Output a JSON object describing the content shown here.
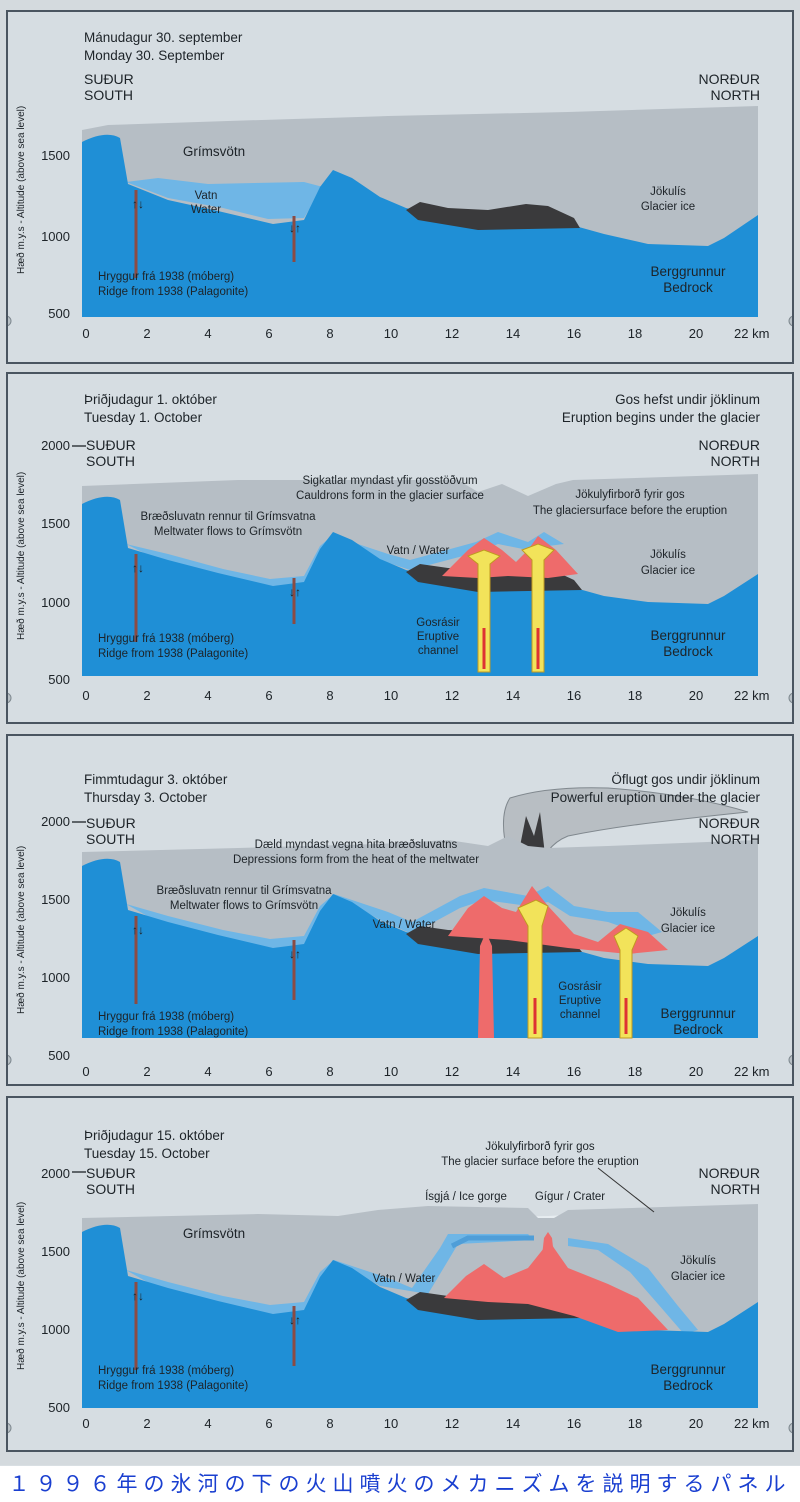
{
  "common": {
    "y_axis_title": "Hæð m.y.s - Altitude (above sea level)",
    "south_is": "SUÐUR",
    "south_en": "SOUTH",
    "north_is": "NORÐUR",
    "north_en": "NORTH",
    "x_ticks": [
      "0",
      "2",
      "4",
      "6",
      "8",
      "10",
      "12",
      "14",
      "16",
      "18",
      "20",
      "22 km"
    ],
    "ridge_is": "Hryggur frá 1938 (móberg)",
    "ridge_en": "Ridge from 1938 (Palagonite)",
    "bedrock_is": "Berggrunnur",
    "bedrock_en": "Bedrock",
    "glacier_is": "Jökulís",
    "glacier_en": "Glacier ice",
    "colors": {
      "bedrock": "#1f8fd6",
      "water": "#6fb6e6",
      "ice": "#b6bec5",
      "hyaloclastite": "#3a3a3c",
      "magma": "#ee6b6b",
      "channel": "#f2e35a"
    }
  },
  "panels": [
    {
      "date_is": "Mánudagur 30. september",
      "date_en": "Monday 30. September",
      "y_ticks": [
        "1500",
        "1000",
        "500"
      ],
      "grimsvotn": "Grímsvötn",
      "water_is": "Vatn",
      "water_en": "Water"
    },
    {
      "date_is": "Þriðjudagur 1. október",
      "date_en": "Tuesday 1. October",
      "y_ticks": [
        "2000",
        "1500",
        "1000",
        "500"
      ],
      "heading_is": "Gos hefst undir jöklinum",
      "heading_en": "Eruption begins under the glacier",
      "cauldron_is": "Sigkatlar myndast yfir gosstöðvum",
      "cauldron_en": "Cauldrons form in the glacier surface",
      "surface_is": "Jökulyfirborð fyrir gos",
      "surface_en": "The glaciersurface before the eruption",
      "melt_is": "Bræðsluvatn rennur til Grímsvatna",
      "melt_en": "Meltwater flows to Grímsvötn",
      "water": "Vatn / Water",
      "channel_is": "Gosrásir",
      "channel_en1": "Eruptive",
      "channel_en2": "channel"
    },
    {
      "date_is": "Fimmtudagur 3. október",
      "date_en": "Thursday 3. October",
      "y_ticks": [
        "2000",
        "1500",
        "1000",
        "500"
      ],
      "heading_is": "Öflugt gos undir jöklinum",
      "heading_en": "Powerful eruption under the glacier",
      "depr_is": "Dæld myndast vegna hita bræðsluvatns",
      "depr_en": "Depressions form from the heat of the meltwater",
      "melt_is": "Bræðsluvatn rennur til Grímsvatna",
      "melt_en": "Meltwater flows to Grímsvötn",
      "water": "Vatn / Water",
      "channel_is": "Gosrásir",
      "channel_en1": "Eruptive",
      "channel_en2": "channel"
    },
    {
      "date_is": "Þriðjudagur 15. október",
      "date_en": "Tuesday 15. October",
      "y_ticks": [
        "2000",
        "1500",
        "1000",
        "500"
      ],
      "surface_is": "Jökulyfirborð fyrir gos",
      "surface_en": "The glacier surface before the eruption",
      "gorge": "Ísgjá / Ice gorge",
      "crater": "Gígur / Crater",
      "grimsvotn": "Grímsvötn",
      "water": "Vatn / Water"
    }
  ],
  "caption": "１９９６年の氷河の下の火山噴火のメカニズムを説明するパネル"
}
